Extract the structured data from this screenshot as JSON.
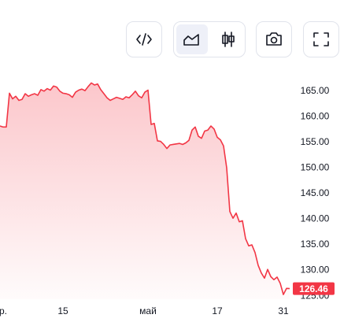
{
  "chart_data": {
    "type": "area",
    "categories": [
      null,
      "р.",
      null,
      null,
      null,
      null,
      null,
      null,
      null,
      null,
      null,
      null,
      null,
      null,
      null,
      null,
      null,
      null,
      null,
      null,
      "15",
      null,
      null,
      null,
      null,
      null,
      null,
      null,
      null,
      null,
      null,
      null,
      null,
      null,
      null,
      null,
      null,
      null,
      null,
      null,
      null,
      null,
      null,
      null,
      null,
      null,
      null,
      "май",
      null,
      null,
      null,
      null,
      null,
      null,
      null,
      null,
      null,
      null,
      null,
      null,
      null,
      null,
      null,
      null,
      null,
      null,
      null,
      null,
      null,
      "17",
      null,
      null,
      null,
      null,
      null,
      null,
      null,
      null,
      null,
      null,
      null,
      null,
      null,
      null,
      null,
      null,
      null,
      null,
      null,
      null,
      "31",
      null,
      null
    ],
    "values": [
      158.2,
      158,
      158,
      164.6,
      163.5,
      164,
      163.2,
      163.4,
      164.5,
      164,
      164.3,
      164.5,
      164.2,
      165.3,
      165,
      165.5,
      165.2,
      166,
      165.8,
      165,
      164.6,
      164.5,
      164.3,
      163.8,
      164.8,
      165.2,
      165.4,
      165.1,
      165.9,
      166.6,
      166.2,
      166.4,
      165.3,
      164.5,
      163.7,
      163.2,
      163.5,
      163.8,
      163.6,
      163.4,
      163.9,
      163.7,
      164.3,
      165,
      164.1,
      163.7,
      164.8,
      165.2,
      158.5,
      158.7,
      155.3,
      155.2,
      154.6,
      153.8,
      154.5,
      154.6,
      154.7,
      154.8,
      154.6,
      154.9,
      155.4,
      157.4,
      158,
      156.2,
      155.8,
      157.2,
      157.4,
      158.2,
      157.6,
      156,
      155.5,
      154.3,
      150,
      141.5,
      140.2,
      141.2,
      139.5,
      139.7,
      136.2,
      134.8,
      135,
      133.5,
      131,
      129.5,
      128.5,
      130.2,
      128.8,
      128.2,
      128.7,
      127.5,
      125.3,
      126.5,
      126.46
    ],
    "color": "#f23645",
    "ylim": [
      124.4,
      170.5
    ],
    "yticks": [
      {
        "value": 125,
        "label": "125.00"
      },
      {
        "value": 130,
        "label": "130.00"
      },
      {
        "value": 135,
        "label": "135.00"
      },
      {
        "value": 140,
        "label": "140.00"
      },
      {
        "value": 145,
        "label": "145.00"
      },
      {
        "value": 150,
        "label": "150.00"
      },
      {
        "value": 155,
        "label": "155.00"
      },
      {
        "value": 160,
        "label": "160.00"
      },
      {
        "value": 165,
        "label": "165.00"
      }
    ],
    "current_price": {
      "value": 126.46,
      "label": "126.46"
    }
  }
}
